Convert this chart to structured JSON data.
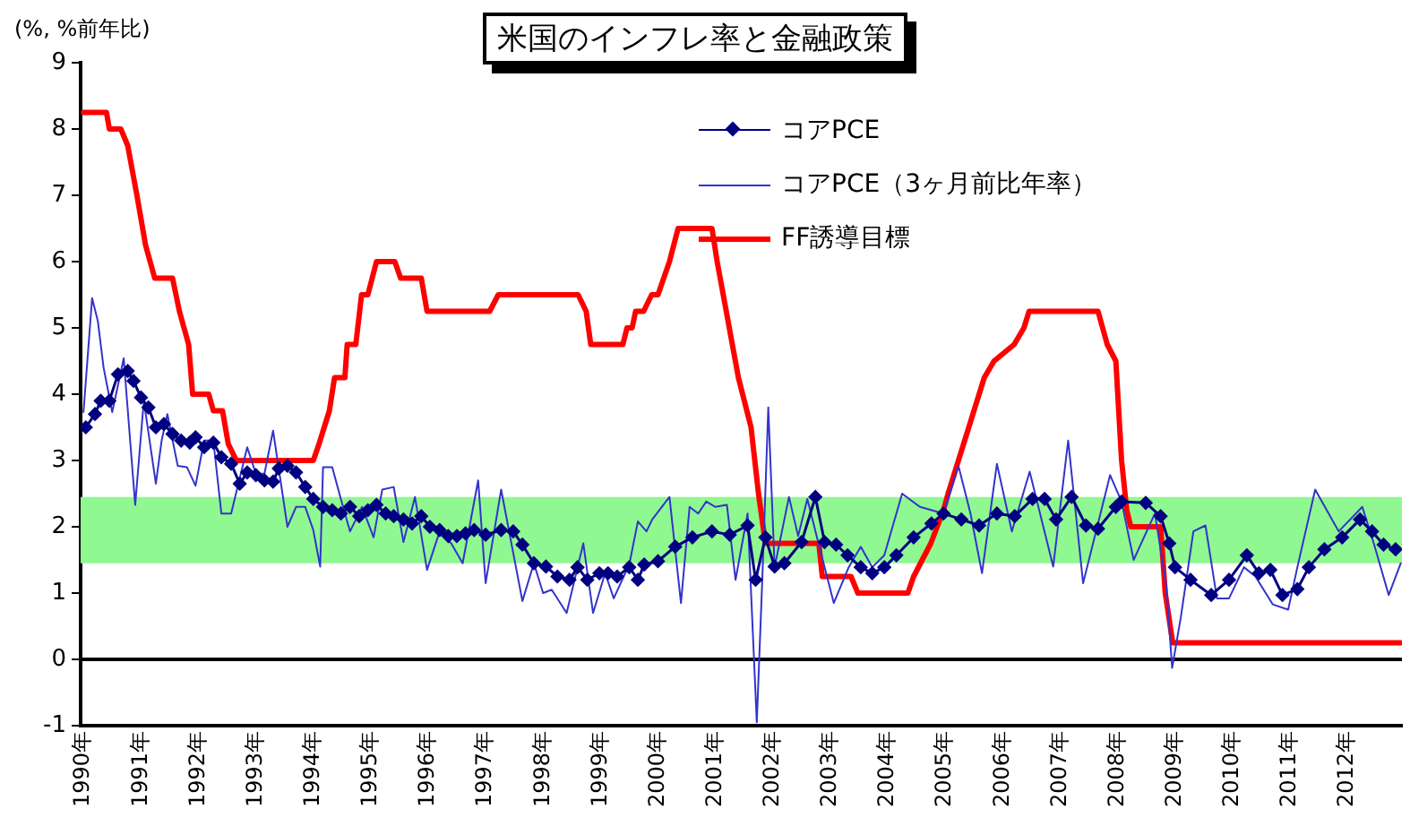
{
  "chart_data": {
    "type": "line",
    "title": "米国のインフレ率と金融政策",
    "ylabel": "(%, %前年比)",
    "xlim": [
      1989.95,
      2012.95
    ],
    "xticks": [
      {
        "value": 1990,
        "label": "1990年"
      },
      {
        "value": 1991,
        "label": "1991年"
      },
      {
        "value": 1992,
        "label": "1992年"
      },
      {
        "value": 1993,
        "label": "1993年"
      },
      {
        "value": 1994,
        "label": "1994年"
      },
      {
        "value": 1995,
        "label": "1995年"
      },
      {
        "value": 1996,
        "label": "1996年"
      },
      {
        "value": 1997,
        "label": "1997年"
      },
      {
        "value": 1998,
        "label": "1998年"
      },
      {
        "value": 1999,
        "label": "1999年"
      },
      {
        "value": 2000,
        "label": "2000年"
      },
      {
        "value": 2001,
        "label": "2001年"
      },
      {
        "value": 2002,
        "label": "2002年"
      },
      {
        "value": 2003,
        "label": "2003年"
      },
      {
        "value": 2004,
        "label": "2004年"
      },
      {
        "value": 2005,
        "label": "2005年"
      },
      {
        "value": 2006,
        "label": "2006年"
      },
      {
        "value": 2007,
        "label": "2007年"
      },
      {
        "value": 2008,
        "label": "2008年"
      },
      {
        "value": 2009,
        "label": "2009年"
      },
      {
        "value": 2010,
        "label": "2010年"
      },
      {
        "value": 2011,
        "label": "2011年"
      },
      {
        "value": 2012,
        "label": "2012年"
      }
    ],
    "ylim": [
      -1,
      9
    ],
    "yticks": [
      -1,
      0,
      1,
      2,
      3,
      4,
      5,
      6,
      7,
      8,
      9
    ],
    "legend": "top right",
    "line_style": "solid",
    "bands": [
      {
        "axis": "y",
        "from": 1.45,
        "to": 2.45,
        "color": "#90f890"
      }
    ],
    "ref_lines": [
      {
        "axis": "y",
        "value": 0,
        "color": "#000000"
      }
    ],
    "series": [
      {
        "name": "コアPCE",
        "color": "#000080",
        "marker": "diamond",
        "x": [
          1990.04,
          1990.2,
          1990.3,
          1990.45,
          1990.6,
          1990.77,
          1990.87,
          1991.0,
          1991.13,
          1991.26,
          1991.4,
          1991.55,
          1991.7,
          1991.85,
          1991.95,
          1992.1,
          1992.26,
          1992.4,
          1992.57,
          1992.72,
          1992.85,
          1993.0,
          1993.15,
          1993.3,
          1993.4,
          1993.55,
          1993.7,
          1993.86,
          1994.0,
          1994.17,
          1994.33,
          1994.48,
          1994.64,
          1994.8,
          1994.95,
          1995.1,
          1995.26,
          1995.4,
          1995.57,
          1995.72,
          1995.88,
          1996.03,
          1996.2,
          1996.35,
          1996.5,
          1996.65,
          1996.8,
          1997.0,
          1997.27,
          1997.48,
          1997.64,
          1997.84,
          1998.05,
          1998.25,
          1998.46,
          1998.6,
          1998.77,
          1998.98,
          1999.13,
          1999.29,
          1999.5,
          1999.65,
          1999.76,
          2000.0,
          2000.3,
          2000.6,
          2000.94,
          2001.25,
          2001.56,
          2001.7,
          2001.87,
          2002.03,
          2002.2,
          2002.5,
          2002.74,
          2002.9,
          2003.1,
          2003.3,
          2003.53,
          2003.73,
          2003.94,
          2004.15,
          2004.45,
          2004.76,
          2004.97,
          2005.28,
          2005.59,
          2005.9,
          2006.21,
          2006.52,
          2006.73,
          2006.93,
          2007.2,
          2007.45,
          2007.66,
          2007.97,
          2008.07,
          2008.49,
          2008.75,
          2008.9,
          2009.0,
          2009.27,
          2009.63,
          2009.94,
          2010.25,
          2010.46,
          2010.66,
          2010.87,
          2011.13,
          2011.33,
          2011.6,
          2011.91,
          2012.22,
          2012.43,
          2012.63,
          2012.84
        ],
        "values": [
          3.5,
          3.7,
          3.9,
          3.9,
          4.3,
          4.35,
          4.2,
          3.95,
          3.8,
          3.5,
          3.55,
          3.4,
          3.3,
          3.27,
          3.35,
          3.2,
          3.27,
          3.05,
          2.95,
          2.65,
          2.82,
          2.78,
          2.7,
          2.68,
          2.88,
          2.92,
          2.82,
          2.6,
          2.42,
          2.3,
          2.25,
          2.2,
          2.3,
          2.16,
          2.25,
          2.33,
          2.2,
          2.16,
          2.11,
          2.05,
          2.16,
          2.0,
          1.95,
          1.86,
          1.86,
          1.9,
          1.95,
          1.88,
          1.95,
          1.93,
          1.73,
          1.45,
          1.4,
          1.25,
          1.2,
          1.39,
          1.2,
          1.3,
          1.3,
          1.25,
          1.39,
          1.2,
          1.43,
          1.48,
          1.7,
          1.84,
          1.93,
          1.88,
          2.02,
          1.2,
          1.84,
          1.4,
          1.45,
          1.77,
          2.45,
          1.77,
          1.73,
          1.57,
          1.39,
          1.3,
          1.39,
          1.57,
          1.84,
          2.05,
          2.2,
          2.11,
          2.02,
          2.2,
          2.16,
          2.42,
          2.42,
          2.11,
          2.45,
          2.02,
          1.97,
          2.3,
          2.38,
          2.36,
          2.16,
          1.75,
          1.39,
          1.2,
          0.97,
          1.2,
          1.57,
          1.3,
          1.35,
          0.97,
          1.06,
          1.39,
          1.66,
          1.84,
          2.11,
          1.93,
          1.73,
          1.66
        ]
      },
      {
        "name": "コアPCE（3ヶ月前比年率）",
        "color": "#3333cc",
        "marker": "none",
        "x": [
          1990.0,
          1990.15,
          1990.25,
          1990.35,
          1990.5,
          1990.7,
          1990.9,
          1991.05,
          1991.26,
          1991.36,
          1991.46,
          1991.64,
          1991.8,
          1991.95,
          1992.1,
          1992.26,
          1992.4,
          1992.57,
          1992.85,
          1993.0,
          1993.15,
          1993.3,
          1993.55,
          1993.7,
          1993.86,
          1994.0,
          1994.12,
          1994.17,
          1994.33,
          1994.48,
          1994.64,
          1994.85,
          1995.05,
          1995.2,
          1995.4,
          1995.57,
          1995.77,
          1995.98,
          1996.2,
          1996.4,
          1996.6,
          1996.87,
          1997.0,
          1997.27,
          1997.64,
          1997.84,
          1998.0,
          1998.15,
          1998.41,
          1998.7,
          1998.87,
          1999.08,
          1999.23,
          1999.5,
          1999.65,
          1999.8,
          1999.9,
          2000.2,
          2000.4,
          2000.55,
          2000.7,
          2000.84,
          2001.0,
          2001.2,
          2001.35,
          2001.56,
          2001.72,
          2001.82,
          2001.92,
          2002.03,
          2002.28,
          2002.44,
          2002.6,
          2002.8,
          2003.06,
          2003.32,
          2003.53,
          2003.73,
          2003.94,
          2004.25,
          2004.56,
          2004.97,
          2005.23,
          2005.44,
          2005.64,
          2005.9,
          2006.16,
          2006.47,
          2006.88,
          2007.14,
          2007.4,
          2007.87,
          2008.07,
          2008.28,
          2008.65,
          2008.85,
          2008.95,
          2009.1,
          2009.32,
          2009.53,
          2009.73,
          2009.94,
          2010.2,
          2010.4,
          2010.7,
          2010.97,
          2011.13,
          2011.44,
          2011.85,
          2012.26,
          2012.46,
          2012.72,
          2012.93
        ],
        "values": [
          3.73,
          5.45,
          5.1,
          4.4,
          3.73,
          4.54,
          2.33,
          3.9,
          2.65,
          3.3,
          3.7,
          2.92,
          2.9,
          2.62,
          3.3,
          3.3,
          2.2,
          2.2,
          3.2,
          2.8,
          2.8,
          3.45,
          2.0,
          2.3,
          2.3,
          1.95,
          1.4,
          2.9,
          2.9,
          2.42,
          1.93,
          2.3,
          1.84,
          2.56,
          2.6,
          1.77,
          2.45,
          1.35,
          1.93,
          1.75,
          1.45,
          2.7,
          1.15,
          2.56,
          0.88,
          1.45,
          1.0,
          1.05,
          0.7,
          1.75,
          0.7,
          1.3,
          0.92,
          1.43,
          2.08,
          1.93,
          2.11,
          2.45,
          0.85,
          2.3,
          2.2,
          2.38,
          2.3,
          2.33,
          1.2,
          2.2,
          -0.95,
          1.3,
          3.8,
          1.39,
          2.45,
          1.86,
          2.42,
          1.73,
          0.85,
          1.39,
          1.7,
          1.39,
          1.57,
          2.5,
          2.3,
          2.2,
          2.92,
          2.2,
          1.3,
          2.95,
          1.93,
          2.83,
          1.4,
          3.3,
          1.15,
          2.78,
          2.38,
          1.5,
          2.2,
          1.1,
          -0.13,
          0.63,
          1.93,
          2.02,
          0.92,
          0.92,
          1.39,
          1.25,
          0.83,
          0.75,
          1.39,
          2.56,
          1.93,
          2.3,
          1.75,
          0.97,
          1.45
        ]
      },
      {
        "name": "FF誘導目標",
        "color": "#ff0000",
        "marker": "none",
        "x": [
          1990.0,
          1990.4,
          1990.45,
          1990.65,
          1990.77,
          1990.93,
          1991.08,
          1991.24,
          1991.55,
          1991.67,
          1991.83,
          1991.9,
          1992.18,
          1992.26,
          1992.42,
          1992.52,
          1992.66,
          1994.0,
          1994.1,
          1994.28,
          1994.37,
          1994.55,
          1994.59,
          1994.74,
          1994.84,
          1994.95,
          1995.1,
          1995.42,
          1995.52,
          1995.88,
          1995.98,
          1997.07,
          1997.22,
          1998.61,
          1998.75,
          1998.83,
          1999.39,
          1999.46,
          1999.55,
          1999.61,
          1999.75,
          1999.89,
          2000.0,
          2000.1,
          2000.2,
          2000.35,
          2000.94,
          2001.03,
          2001.4,
          2001.62,
          2001.75,
          2001.87,
          2002.8,
          2002.86,
          2003.36,
          2003.48,
          2004.35,
          2004.45,
          2004.6,
          2004.75,
          2004.97,
          2005.05,
          2005.68,
          2005.85,
          2006.2,
          2006.37,
          2006.46,
          2007.66,
          2007.82,
          2007.97,
          2008.07,
          2008.16,
          2008.23,
          2008.75,
          2008.83,
          2008.96,
          2012.93
        ],
        "values": [
          8.25,
          8.25,
          8.0,
          8.0,
          7.75,
          7.0,
          6.25,
          5.75,
          5.75,
          5.25,
          4.75,
          4.0,
          4.0,
          3.75,
          3.75,
          3.25,
          3.0,
          3.0,
          3.25,
          3.75,
          4.25,
          4.25,
          4.75,
          4.75,
          5.5,
          5.5,
          6.0,
          6.0,
          5.75,
          5.75,
          5.25,
          5.25,
          5.5,
          5.5,
          5.25,
          4.75,
          4.75,
          5.0,
          5.0,
          5.25,
          5.25,
          5.5,
          5.5,
          5.75,
          6.0,
          6.5,
          6.5,
          6.0,
          4.25,
          3.5,
          2.5,
          1.75,
          1.75,
          1.25,
          1.25,
          1.0,
          1.0,
          1.25,
          1.5,
          1.75,
          2.25,
          2.5,
          4.25,
          4.5,
          4.75,
          5.0,
          5.25,
          5.25,
          4.75,
          4.5,
          3.0,
          2.25,
          2.0,
          2.0,
          1.0,
          0.25,
          0.25
        ]
      }
    ]
  }
}
